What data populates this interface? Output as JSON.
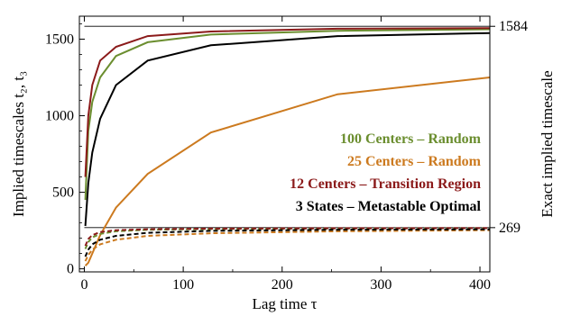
{
  "chart_data": {
    "type": "line",
    "xlabel": "Lag time τ",
    "ylabel": "Implied timescales t₂, t₃",
    "ylabel_right": "Exact implied timescale",
    "xlim": [
      -5,
      410
    ],
    "ylim": [
      -20,
      1650
    ],
    "x_ticks": [
      "0",
      "100",
      "200",
      "300",
      "400"
    ],
    "y_ticks": [
      "0",
      "500",
      "1000",
      "1500"
    ],
    "reference_lines": [
      {
        "label": "1584",
        "value": 1584
      },
      {
        "label": "269",
        "value": 269
      }
    ],
    "legend": [
      {
        "number": "100",
        "method": "Centers",
        "dash": "–",
        "label": "Random",
        "color": "#6b8e2f"
      },
      {
        "number": "25",
        "method": "Centers",
        "dash": "–",
        "label": "Random",
        "color": "#cc7a1f"
      },
      {
        "number": "12",
        "method": "Centers",
        "dash": "–",
        "label": "Transition Region",
        "color": "#8b1a1a"
      },
      {
        "number": "3",
        "method": "States",
        "dash": "–",
        "label": "Metastable Optimal",
        "color": "#000000"
      }
    ],
    "series": [
      {
        "color": "#6b8e2f",
        "style": "solid",
        "x": [
          1,
          4,
          8,
          16,
          32,
          64,
          128,
          256,
          410
        ],
        "y": [
          450,
          900,
          1090,
          1250,
          1390,
          1480,
          1530,
          1555,
          1565
        ]
      },
      {
        "color": "#cc7a1f",
        "style": "solid",
        "x": [
          1,
          4,
          8,
          16,
          32,
          64,
          128,
          256,
          410
        ],
        "y": [
          20,
          40,
          100,
          220,
          400,
          620,
          890,
          1140,
          1250
        ]
      },
      {
        "color": "#8b1a1a",
        "style": "solid",
        "x": [
          1,
          4,
          8,
          16,
          32,
          64,
          128,
          256,
          410
        ],
        "y": [
          600,
          1000,
          1200,
          1360,
          1450,
          1520,
          1550,
          1568,
          1572
        ]
      },
      {
        "color": "#000000",
        "style": "solid",
        "x": [
          1,
          4,
          8,
          16,
          32,
          64,
          128,
          256,
          410
        ],
        "y": [
          280,
          560,
          760,
          980,
          1200,
          1360,
          1460,
          1520,
          1540
        ]
      },
      {
        "color": "#6b8e2f",
        "style": "dashed",
        "x": [
          1,
          4,
          8,
          16,
          32,
          64,
          128,
          256,
          410
        ],
        "y": [
          130,
          175,
          205,
          228,
          245,
          255,
          260,
          263,
          265
        ]
      },
      {
        "color": "#cc7a1f",
        "style": "dashed",
        "x": [
          1,
          4,
          8,
          16,
          32,
          64,
          128,
          256,
          410
        ],
        "y": [
          50,
          90,
          125,
          160,
          190,
          215,
          232,
          245,
          252
        ]
      },
      {
        "color": "#8b1a1a",
        "style": "dashed",
        "x": [
          1,
          4,
          8,
          16,
          32,
          64,
          128,
          256,
          410
        ],
        "y": [
          150,
          195,
          220,
          240,
          252,
          259,
          263,
          265,
          266
        ]
      },
      {
        "color": "#000000",
        "style": "dashed",
        "x": [
          1,
          4,
          8,
          16,
          32,
          64,
          128,
          256,
          410
        ],
        "y": [
          80,
          125,
          160,
          190,
          215,
          235,
          248,
          255,
          258
        ]
      }
    ]
  }
}
